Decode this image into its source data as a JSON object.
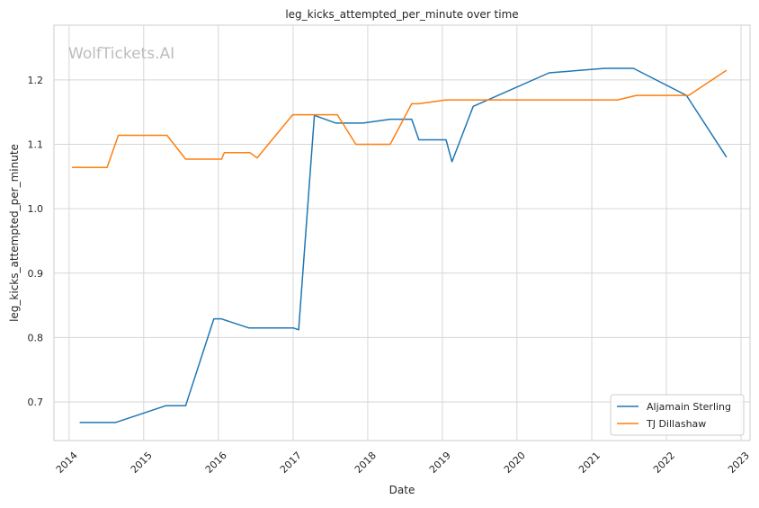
{
  "watermark": "WolfTickets.AI",
  "chart_data": {
    "type": "line",
    "title": "leg_kicks_attempted_per_minute over time",
    "xlabel": "Date",
    "ylabel": "leg_kicks_attempted_per_minute",
    "xlim": [
      "2013-10-19",
      "2023-02-14"
    ],
    "ylim": [
      0.64,
      1.285
    ],
    "x_ticks": [
      "2014",
      "2015",
      "2016",
      "2017",
      "2018",
      "2019",
      "2020",
      "2021",
      "2022",
      "2023"
    ],
    "y_ticks": [
      "0.7",
      "0.8",
      "0.9",
      "1.0",
      "1.1",
      "1.2"
    ],
    "grid": true,
    "legend_position": "bottom-right",
    "series": [
      {
        "name": "Aljamain Sterling",
        "color": "#1f77b4",
        "points": [
          [
            "2014-02-22",
            0.668
          ],
          [
            "2014-08-16",
            0.668
          ],
          [
            "2015-04-18",
            0.694
          ],
          [
            "2015-07-25",
            0.694
          ],
          [
            "2015-12-10",
            0.829
          ],
          [
            "2016-01-15",
            0.829
          ],
          [
            "2016-05-29",
            0.815
          ],
          [
            "2017-01-01",
            0.815
          ],
          [
            "2017-01-28",
            0.812
          ],
          [
            "2017-04-15",
            1.145
          ],
          [
            "2017-07-29",
            1.133
          ],
          [
            "2017-12-09",
            1.133
          ],
          [
            "2018-04-21",
            1.139
          ],
          [
            "2018-08-04",
            1.139
          ],
          [
            "2018-09-08",
            1.107
          ],
          [
            "2019-01-19",
            1.107
          ],
          [
            "2019-02-17",
            1.073
          ],
          [
            "2019-06-01",
            1.159
          ],
          [
            "2020-06-06",
            1.211
          ],
          [
            "2021-03-06",
            1.218
          ],
          [
            "2021-07-24",
            1.218
          ],
          [
            "2022-04-09",
            1.176
          ],
          [
            "2022-10-22",
            1.08
          ]
        ]
      },
      {
        "name": "TJ Dillashaw",
        "color": "#ff7f0e",
        "points": [
          [
            "2014-01-15",
            1.064
          ],
          [
            "2014-07-06",
            1.064
          ],
          [
            "2014-08-30",
            1.114
          ],
          [
            "2015-04-25",
            1.114
          ],
          [
            "2015-07-25",
            1.077
          ],
          [
            "2016-01-17",
            1.077
          ],
          [
            "2016-01-30",
            1.087
          ],
          [
            "2016-06-04",
            1.087
          ],
          [
            "2016-07-09",
            1.079
          ],
          [
            "2016-12-30",
            1.146
          ],
          [
            "2017-08-05",
            1.146
          ],
          [
            "2017-11-04",
            1.1
          ],
          [
            "2018-04-21",
            1.1
          ],
          [
            "2018-08-04",
            1.163
          ],
          [
            "2018-09-08",
            1.163
          ],
          [
            "2019-01-19",
            1.169
          ],
          [
            "2021-05-08",
            1.169
          ],
          [
            "2021-08-07",
            1.176
          ],
          [
            "2022-04-20",
            1.176
          ],
          [
            "2022-10-22",
            1.215
          ]
        ]
      }
    ]
  }
}
